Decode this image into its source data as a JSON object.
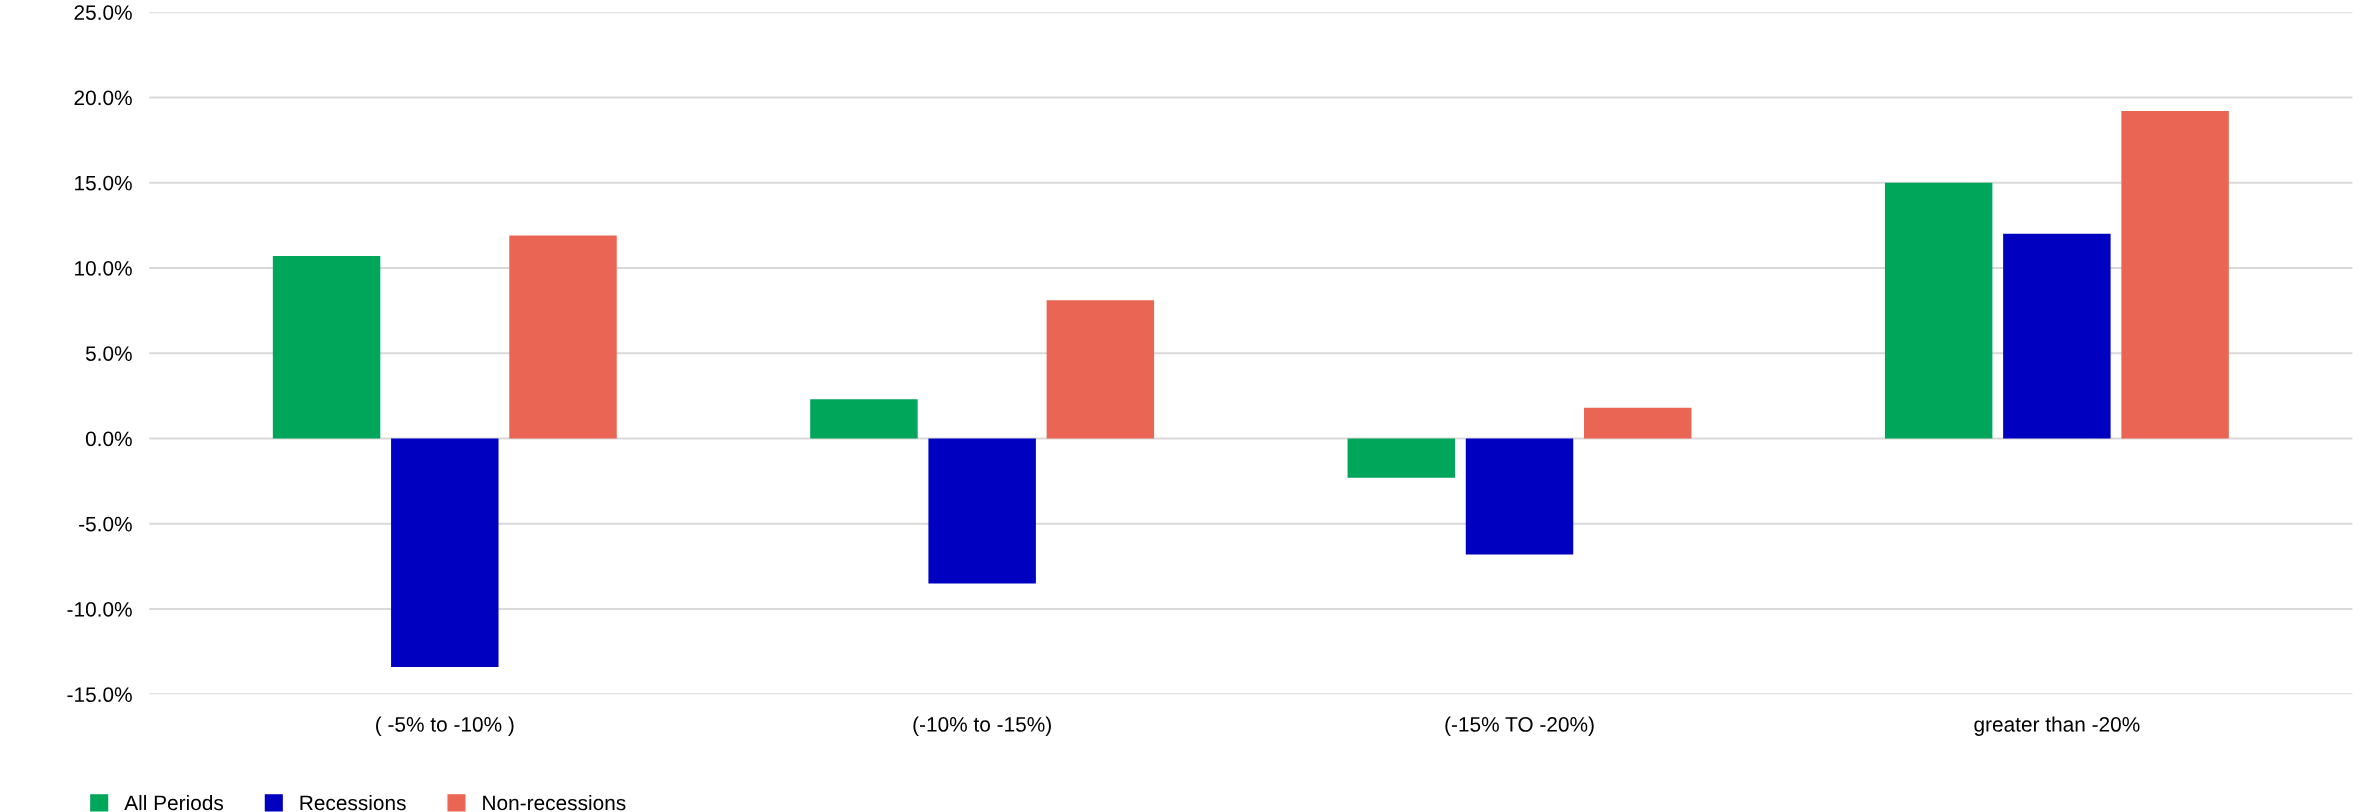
{
  "chart_data": {
    "type": "bar",
    "categories": [
      "( -5% to -10% )",
      "(-10% to -15%)",
      "(-15% TO -20%)",
      "greater than -20%"
    ],
    "series": [
      {
        "name": "All Periods",
        "color": "#00a65a",
        "values": [
          10.7,
          2.3,
          -2.3,
          15.0
        ]
      },
      {
        "name": "Recessions",
        "color": "#0000c0",
        "values": [
          -13.4,
          -8.5,
          -6.8,
          12.0
        ]
      },
      {
        "name": "Non-recessions",
        "color": "#eb6554",
        "values": [
          11.9,
          8.1,
          1.8,
          19.2
        ]
      }
    ],
    "ylim": [
      -15,
      25
    ],
    "yticks": [
      {
        "value": -15,
        "label": "-15.0%"
      },
      {
        "value": -10,
        "label": "-10.0%"
      },
      {
        "value": -5,
        "label": "-5.0%"
      },
      {
        "value": 0,
        "label": "0.0%"
      },
      {
        "value": 5,
        "label": "5.0%"
      },
      {
        "value": 10,
        "label": "10.0%"
      },
      {
        "value": 15,
        "label": "15.0%"
      },
      {
        "value": 20,
        "label": "20.0%"
      },
      {
        "value": 25,
        "label": "25.0%"
      }
    ],
    "grid": "y",
    "legend": "bottom left"
  }
}
